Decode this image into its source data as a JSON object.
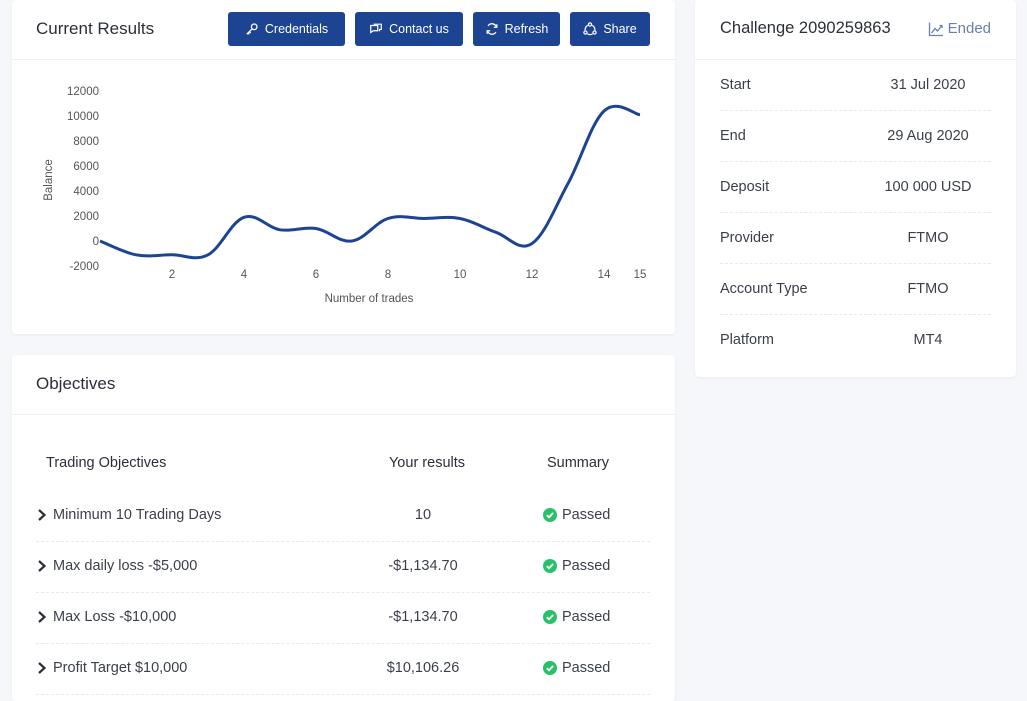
{
  "results": {
    "title": "Current Results",
    "buttons": {
      "credentials": "Credentials",
      "contact": "Contact us",
      "refresh": "Refresh",
      "share": "Share"
    }
  },
  "chart_data": {
    "type": "line",
    "title": "",
    "xlabel": "Number of trades",
    "ylabel": "Balance",
    "xlim": [
      0,
      15
    ],
    "ylim": [
      -2000,
      12000
    ],
    "x_ticks": [
      2,
      4,
      6,
      8,
      10,
      12,
      14,
      15
    ],
    "y_ticks": [
      -2000,
      0,
      2000,
      4000,
      6000,
      8000,
      10000,
      12000
    ],
    "grid": false,
    "series": [
      {
        "color": "#1c4493",
        "x": [
          0,
          1,
          2,
          3,
          4,
          5,
          6,
          7,
          8,
          9,
          10,
          11,
          12,
          13,
          14,
          15
        ],
        "y": [
          0,
          -1100,
          -1100,
          -1100,
          1900,
          900,
          1000,
          0,
          1800,
          1800,
          1800,
          700,
          -200,
          4600,
          10400,
          10100
        ]
      }
    ]
  },
  "challenge": {
    "title": "Challenge 2090259863",
    "status": "Ended",
    "rows": [
      {
        "label": "Start",
        "value": "31 Jul 2020"
      },
      {
        "label": "End",
        "value": "29 Aug 2020"
      },
      {
        "label": "Deposit",
        "value": "100 000 USD"
      },
      {
        "label": "Provider",
        "value": "FTMO"
      },
      {
        "label": "Account Type",
        "value": "FTMO"
      },
      {
        "label": "Platform",
        "value": "MT4"
      }
    ]
  },
  "objectives": {
    "title": "Objectives",
    "headers": {
      "objectives": "Trading Objectives",
      "results": "Your results",
      "summary": "Summary"
    },
    "rows": [
      {
        "name": "Minimum 10 Trading Days",
        "result": "10",
        "summary": "Passed"
      },
      {
        "name": "Max daily loss -$5,000",
        "result": "-$1,134.70",
        "summary": "Passed"
      },
      {
        "name": "Max Loss -$10,000",
        "result": "-$1,134.70",
        "summary": "Passed"
      },
      {
        "name": "Profit Target $10,000",
        "result": "$10,106.26",
        "summary": "Passed"
      }
    ]
  },
  "colors": {
    "button": "#1c4493",
    "line": "#1c4493",
    "passed": "#27c267",
    "status": "#6b7fb0"
  }
}
